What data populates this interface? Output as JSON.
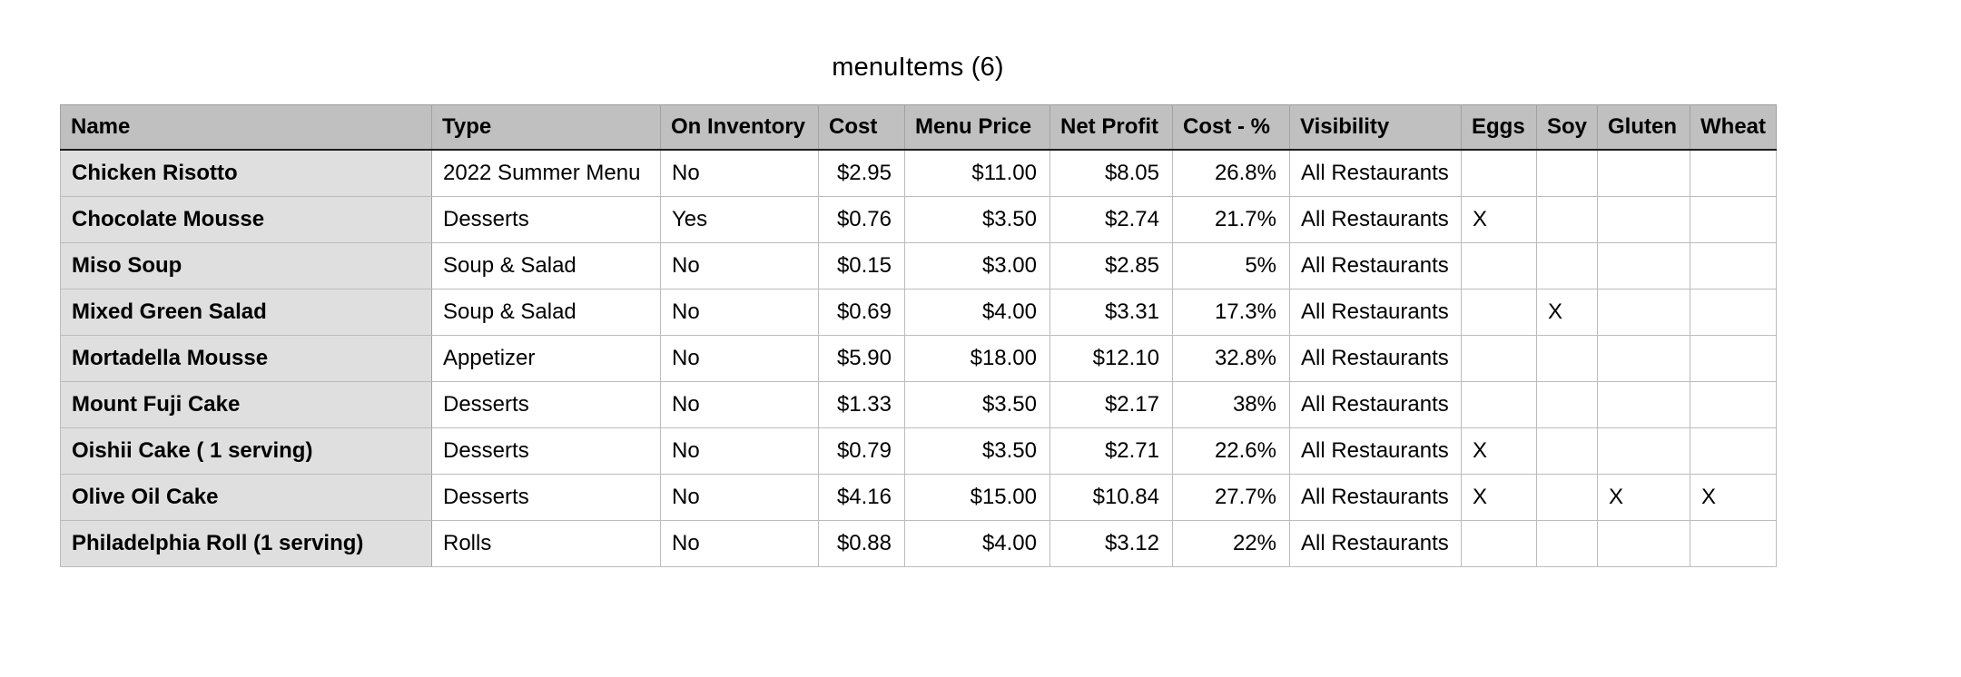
{
  "title": "menuItems (6)",
  "colors": {
    "header_bg": "#c0c0c0",
    "name_column_bg": "#dfdfdf",
    "header_rule": "#1c1c1c",
    "grid_line": "#bcbcbc",
    "outer_border": "#9c9c9c",
    "text": "#000000"
  },
  "table": {
    "columns": [
      {
        "key": "name",
        "label": "Name"
      },
      {
        "key": "type",
        "label": "Type"
      },
      {
        "key": "on_inventory",
        "label": "On Inventory"
      },
      {
        "key": "cost",
        "label": "Cost"
      },
      {
        "key": "menu_price",
        "label": "Menu Price"
      },
      {
        "key": "net_profit",
        "label": "Net Profit"
      },
      {
        "key": "cost_pct",
        "label": "Cost - %"
      },
      {
        "key": "visibility",
        "label": "Visibility"
      },
      {
        "key": "eggs",
        "label": "Eggs"
      },
      {
        "key": "soy",
        "label": "Soy"
      },
      {
        "key": "gluten",
        "label": "Gluten"
      },
      {
        "key": "wheat",
        "label": "Wheat"
      }
    ],
    "rows": [
      {
        "name": "Chicken Risotto",
        "type": "2022 Summer Menu",
        "on_inventory": "No",
        "cost": "$2.95",
        "menu_price": "$11.00",
        "net_profit": "$8.05",
        "cost_pct": "26.8%",
        "visibility": "All Restaurants",
        "eggs": "",
        "soy": "",
        "gluten": "",
        "wheat": ""
      },
      {
        "name": "Chocolate Mousse",
        "type": "Desserts",
        "on_inventory": "Yes",
        "cost": "$0.76",
        "menu_price": "$3.50",
        "net_profit": "$2.74",
        "cost_pct": "21.7%",
        "visibility": "All Restaurants",
        "eggs": "X",
        "soy": "",
        "gluten": "",
        "wheat": ""
      },
      {
        "name": "Miso Soup",
        "type": "Soup & Salad",
        "on_inventory": "No",
        "cost": "$0.15",
        "menu_price": "$3.00",
        "net_profit": "$2.85",
        "cost_pct": "5%",
        "visibility": "All Restaurants",
        "eggs": "",
        "soy": "",
        "gluten": "",
        "wheat": ""
      },
      {
        "name": "Mixed Green Salad",
        "type": "Soup & Salad",
        "on_inventory": "No",
        "cost": "$0.69",
        "menu_price": "$4.00",
        "net_profit": "$3.31",
        "cost_pct": "17.3%",
        "visibility": "All Restaurants",
        "eggs": "",
        "soy": "X",
        "gluten": "",
        "wheat": ""
      },
      {
        "name": "Mortadella Mousse",
        "type": "Appetizer",
        "on_inventory": "No",
        "cost": "$5.90",
        "menu_price": "$18.00",
        "net_profit": "$12.10",
        "cost_pct": "32.8%",
        "visibility": "All Restaurants",
        "eggs": "",
        "soy": "",
        "gluten": "",
        "wheat": ""
      },
      {
        "name": "Mount Fuji Cake",
        "type": "Desserts",
        "on_inventory": "No",
        "cost": "$1.33",
        "menu_price": "$3.50",
        "net_profit": "$2.17",
        "cost_pct": "38%",
        "visibility": "All Restaurants",
        "eggs": "",
        "soy": "",
        "gluten": "",
        "wheat": ""
      },
      {
        "name": "Oishii Cake ( 1 serving)",
        "type": "Desserts",
        "on_inventory": "No",
        "cost": "$0.79",
        "menu_price": "$3.50",
        "net_profit": "$2.71",
        "cost_pct": "22.6%",
        "visibility": "All Restaurants",
        "eggs": "X",
        "soy": "",
        "gluten": "",
        "wheat": ""
      },
      {
        "name": "Olive Oil Cake",
        "type": "Desserts",
        "on_inventory": "No",
        "cost": "$4.16",
        "menu_price": "$15.00",
        "net_profit": "$10.84",
        "cost_pct": "27.7%",
        "visibility": "All Restaurants",
        "eggs": "X",
        "soy": "",
        "gluten": "X",
        "wheat": "X"
      },
      {
        "name": "Philadelphia Roll (1 serving)",
        "type": "Rolls",
        "on_inventory": "No",
        "cost": "$0.88",
        "menu_price": "$4.00",
        "net_profit": "$3.12",
        "cost_pct": "22%",
        "visibility": "All Restaurants",
        "eggs": "",
        "soy": "",
        "gluten": "",
        "wheat": ""
      }
    ]
  }
}
